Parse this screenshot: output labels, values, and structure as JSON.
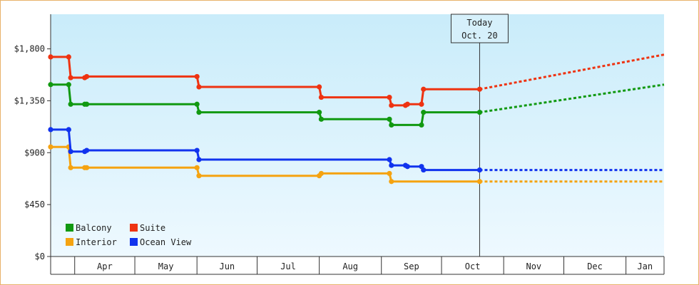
{
  "chart_data": {
    "type": "line",
    "title": "",
    "xlabel": "",
    "ylabel": "",
    "ylim": [
      0,
      2100
    ],
    "y_ticks": [
      {
        "value": 0,
        "label": "$0"
      },
      {
        "value": 450,
        "label": "$450"
      },
      {
        "value": 900,
        "label": "$900"
      },
      {
        "value": 1350,
        "label": "$1,350"
      },
      {
        "value": 1800,
        "label": "$1,800"
      }
    ],
    "x_range": [
      "2016-03-20",
      "2017-01-20"
    ],
    "x_months": [
      {
        "label": "Apr",
        "start": "2016-04-01",
        "end": "2016-05-01"
      },
      {
        "label": "May",
        "start": "2016-05-01",
        "end": "2016-06-01"
      },
      {
        "label": "Jun",
        "start": "2016-06-01",
        "end": "2016-07-01"
      },
      {
        "label": "Jul",
        "start": "2016-07-01",
        "end": "2016-08-01"
      },
      {
        "label": "Aug",
        "start": "2016-08-01",
        "end": "2016-09-01"
      },
      {
        "label": "Sep",
        "start": "2016-09-01",
        "end": "2016-10-01"
      },
      {
        "label": "Oct",
        "start": "2016-10-01",
        "end": "2016-11-01"
      },
      {
        "label": "Nov",
        "start": "2016-11-01",
        "end": "2016-12-01"
      },
      {
        "label": "Dec",
        "start": "2016-12-01",
        "end": "2017-01-01"
      },
      {
        "label": "Jan",
        "start": "2017-01-01",
        "end": "2017-01-20"
      }
    ],
    "today": {
      "date": "2016-10-20",
      "label_line1": "Today",
      "label_line2": "Oct. 20"
    },
    "grid": false,
    "legend_position": "bottom-left",
    "series": [
      {
        "name": "Balcony",
        "color": "#119911",
        "points": [
          [
            "2016-03-20",
            1490
          ],
          [
            "2016-03-29",
            1490
          ],
          [
            "2016-03-30",
            1320
          ],
          [
            "2016-04-06",
            1320
          ],
          [
            "2016-04-07",
            1320
          ],
          [
            "2016-06-01",
            1320
          ],
          [
            "2016-06-02",
            1250
          ],
          [
            "2016-08-01",
            1250
          ],
          [
            "2016-08-02",
            1190
          ],
          [
            "2016-09-05",
            1190
          ],
          [
            "2016-09-06",
            1140
          ],
          [
            "2016-09-21",
            1140
          ],
          [
            "2016-09-22",
            1250
          ],
          [
            "2016-10-20",
            1250
          ]
        ],
        "forecast": [
          [
            "2016-10-20",
            1250
          ],
          [
            "2017-01-20",
            1490
          ]
        ]
      },
      {
        "name": "Suite",
        "color": "#ee3311",
        "points": [
          [
            "2016-03-20",
            1730
          ],
          [
            "2016-03-29",
            1730
          ],
          [
            "2016-03-30",
            1550
          ],
          [
            "2016-04-06",
            1550
          ],
          [
            "2016-04-07",
            1560
          ],
          [
            "2016-06-01",
            1560
          ],
          [
            "2016-06-02",
            1470
          ],
          [
            "2016-08-01",
            1470
          ],
          [
            "2016-08-02",
            1380
          ],
          [
            "2016-09-05",
            1380
          ],
          [
            "2016-09-06",
            1310
          ],
          [
            "2016-09-13",
            1310
          ],
          [
            "2016-09-14",
            1320
          ],
          [
            "2016-09-21",
            1320
          ],
          [
            "2016-09-22",
            1450
          ],
          [
            "2016-10-20",
            1450
          ]
        ],
        "forecast": [
          [
            "2016-10-20",
            1450
          ],
          [
            "2017-01-20",
            1750
          ]
        ]
      },
      {
        "name": "Interior",
        "color": "#f5a311",
        "points": [
          [
            "2016-03-20",
            950
          ],
          [
            "2016-03-29",
            950
          ],
          [
            "2016-03-30",
            770
          ],
          [
            "2016-04-06",
            770
          ],
          [
            "2016-04-07",
            770
          ],
          [
            "2016-06-01",
            770
          ],
          [
            "2016-06-02",
            700
          ],
          [
            "2016-08-01",
            700
          ],
          [
            "2016-08-02",
            720
          ],
          [
            "2016-09-05",
            720
          ],
          [
            "2016-09-06",
            650
          ],
          [
            "2016-10-20",
            650
          ]
        ],
        "forecast": [
          [
            "2016-10-20",
            650
          ],
          [
            "2017-01-20",
            650
          ]
        ]
      },
      {
        "name": "Ocean View",
        "color": "#1133ee",
        "points": [
          [
            "2016-03-20",
            1100
          ],
          [
            "2016-03-29",
            1100
          ],
          [
            "2016-03-30",
            910
          ],
          [
            "2016-04-06",
            910
          ],
          [
            "2016-04-07",
            920
          ],
          [
            "2016-06-01",
            920
          ],
          [
            "2016-06-02",
            840
          ],
          [
            "2016-09-05",
            840
          ],
          [
            "2016-09-06",
            790
          ],
          [
            "2016-09-13",
            790
          ],
          [
            "2016-09-14",
            780
          ],
          [
            "2016-09-21",
            780
          ],
          [
            "2016-09-22",
            750
          ],
          [
            "2016-10-20",
            750
          ]
        ],
        "forecast": [
          [
            "2016-10-20",
            750
          ],
          [
            "2017-01-20",
            750
          ]
        ]
      }
    ]
  },
  "colors": {
    "plot_top": "#c9ecfa",
    "plot_bottom": "#eef9ff",
    "frame_border": "#e8b26a",
    "axis": "#333333"
  }
}
